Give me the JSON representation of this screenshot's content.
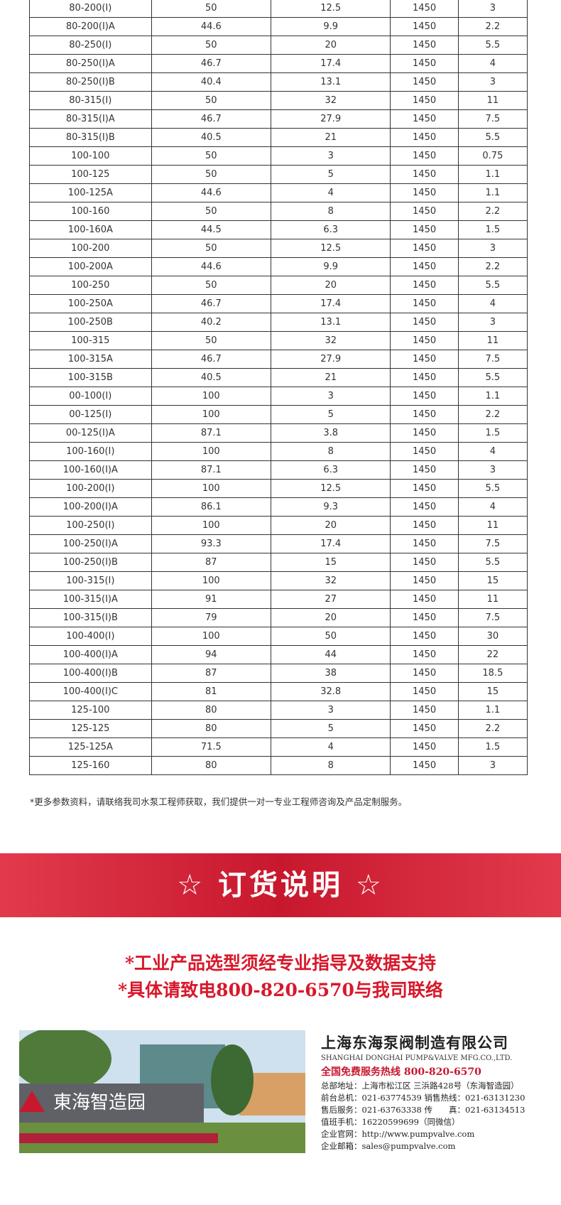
{
  "table": {
    "rows": [
      [
        "80-200(I)",
        "50",
        "12.5",
        "1450",
        "3"
      ],
      [
        "80-200(I)A",
        "44.6",
        "9.9",
        "1450",
        "2.2"
      ],
      [
        "80-250(I)",
        "50",
        "20",
        "1450",
        "5.5"
      ],
      [
        "80-250(I)A",
        "46.7",
        "17.4",
        "1450",
        "4"
      ],
      [
        "80-250(I)B",
        "40.4",
        "13.1",
        "1450",
        "3"
      ],
      [
        "80-315(I)",
        "50",
        "32",
        "1450",
        "11"
      ],
      [
        "80-315(I)A",
        "46.7",
        "27.9",
        "1450",
        "7.5"
      ],
      [
        "80-315(I)B",
        "40.5",
        "21",
        "1450",
        "5.5"
      ],
      [
        "100-100",
        "50",
        "3",
        "1450",
        "0.75"
      ],
      [
        "100-125",
        "50",
        "5",
        "1450",
        "1.1"
      ],
      [
        "100-125A",
        "44.6",
        "4",
        "1450",
        "1.1"
      ],
      [
        "100-160",
        "50",
        "8",
        "1450",
        "2.2"
      ],
      [
        "100-160A",
        "44.5",
        "6.3",
        "1450",
        "1.5"
      ],
      [
        "100-200",
        "50",
        "12.5",
        "1450",
        "3"
      ],
      [
        "100-200A",
        "44.6",
        "9.9",
        "1450",
        "2.2"
      ],
      [
        "100-250",
        "50",
        "20",
        "1450",
        "5.5"
      ],
      [
        "100-250A",
        "46.7",
        "17.4",
        "1450",
        "4"
      ],
      [
        "100-250B",
        "40.2",
        "13.1",
        "1450",
        "3"
      ],
      [
        "100-315",
        "50",
        "32",
        "1450",
        "11"
      ],
      [
        "100-315A",
        "46.7",
        "27.9",
        "1450",
        "7.5"
      ],
      [
        "100-315B",
        "40.5",
        "21",
        "1450",
        "5.5"
      ],
      [
        "00-100(I)",
        "100",
        "3",
        "1450",
        "1.1"
      ],
      [
        "00-125(I)",
        "100",
        "5",
        "1450",
        "2.2"
      ],
      [
        "00-125(I)A",
        "87.1",
        "3.8",
        "1450",
        "1.5"
      ],
      [
        "100-160(I)",
        "100",
        "8",
        "1450",
        "4"
      ],
      [
        "100-160(I)A",
        "87.1",
        "6.3",
        "1450",
        "3"
      ],
      [
        "100-200(I)",
        "100",
        "12.5",
        "1450",
        "5.5"
      ],
      [
        "100-200(I)A",
        "86.1",
        "9.3",
        "1450",
        "4"
      ],
      [
        "100-250(I)",
        "100",
        "20",
        "1450",
        "11"
      ],
      [
        "100-250(I)A",
        "93.3",
        "17.4",
        "1450",
        "7.5"
      ],
      [
        "100-250(I)B",
        "87",
        "15",
        "1450",
        "5.5"
      ],
      [
        "100-315(I)",
        "100",
        "32",
        "1450",
        "15"
      ],
      [
        "100-315(I)A",
        "91",
        "27",
        "1450",
        "11"
      ],
      [
        "100-315(I)B",
        "79",
        "20",
        "1450",
        "7.5"
      ],
      [
        "100-400(I)",
        "100",
        "50",
        "1450",
        "30"
      ],
      [
        "100-400(I)A",
        "94",
        "44",
        "1450",
        "22"
      ],
      [
        "100-400(I)B",
        "87",
        "38",
        "1450",
        "18.5"
      ],
      [
        "100-400(I)C",
        "81",
        "32.8",
        "1450",
        "15"
      ],
      [
        "125-100",
        "80",
        "3",
        "1450",
        "1.1"
      ],
      [
        "125-125",
        "80",
        "5",
        "1450",
        "2.2"
      ],
      [
        "125-125A",
        "71.5",
        "4",
        "1450",
        "1.5"
      ],
      [
        "125-160",
        "80",
        "8",
        "1450",
        "3"
      ]
    ]
  },
  "note": "*更多参数资料，请联络我司水泵工程师获取，我们提供一对一专业工程师咨询及产品定制服务。",
  "banner": {
    "title": "☆ 订货说明 ☆"
  },
  "order": {
    "line1": "*工业产品选型须经专业指导及数据支持",
    "line2": "*具体请致电800-820-6570与我司联络"
  },
  "photo": {
    "sign": "東海智造园"
  },
  "company": {
    "name": "上海东海泵阀制造有限公司",
    "english": "SHANGHAI DONGHAI PUMP&VALVE MFG.CO.,LTD.",
    "hotline": "全国免费服务热线 800-820-6570",
    "lines": [
      "总部地址：上海市松江区 三浜路428号（东海智造园）",
      "前台总机：021-63774539  销售热线：021-63131230",
      "售后服务：021-63763338  传　　真：021-63134513",
      "值班手机：16220599699（同微信）",
      "企业官网：http://www.pumpvalve.com",
      "企业邮箱：sales@pumpvalve.com"
    ]
  }
}
